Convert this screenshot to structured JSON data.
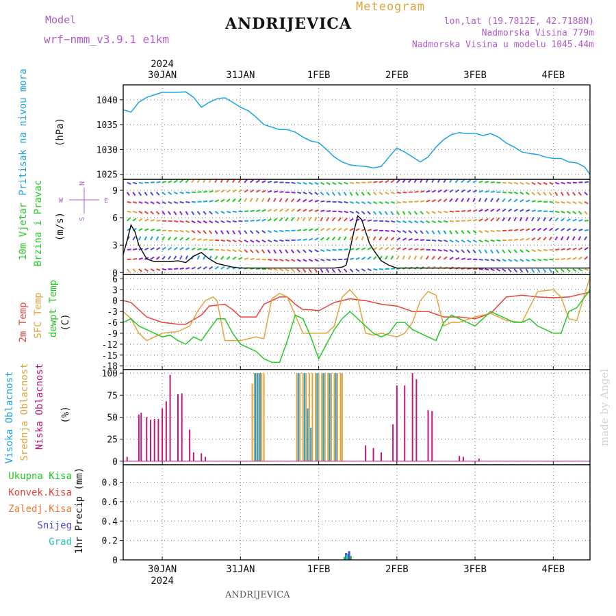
{
  "header": {
    "model_label": "Model",
    "model_name": "wrf−nmm_v3.9.1  e1km",
    "station": "ANDRIJEVICA",
    "title": "Meteogram",
    "coords": "lon,lat (19.7812E, 42.7188N)",
    "elev": "Nadmorska Visina 779m",
    "elev_model": "Nadmorska Visina u modelu 1045.44m",
    "watermark": "made by Angel",
    "footer_station": "ANDRIJEVICA"
  },
  "colors": {
    "pressure": "#1aa3e6",
    "temp_2m": "#e8413a",
    "temp_sfc": "#e3a33a",
    "dewpt": "#22c922",
    "cloud_high": "#1aa3e6",
    "cloud_mid": "#e3a33a",
    "cloud_low": "#c0187a",
    "precip_total": "#22c922",
    "precip_conv": "#e8413a",
    "precip_frozen": "#f07a30",
    "precip_snow": "#4a4ad8",
    "precip_hail": "#28c8b8",
    "wind_legend": "#b05ad0",
    "title_gold": "#e3a33a",
    "grey": "#5a5a5a"
  },
  "chart_data": {
    "type": "line",
    "x_axis": {
      "top_year": "2024",
      "bottom_year": "2024",
      "ticks": [
        "30JAN",
        "31JAN",
        "1FEB",
        "2FEB",
        "3FEB",
        "4FEB"
      ],
      "range_days": [
        -0.5,
        5.47
      ]
    },
    "panels": [
      {
        "id": "pressure",
        "ylabel_name": "Pritisak na nivou mora",
        "ylabel_unit": "(hPa)",
        "yticks": [
          1025,
          1030,
          1035,
          1040
        ],
        "ylim": [
          1024,
          1043
        ],
        "series": [
          {
            "name": "Pritisak na nivou mora",
            "x": [
              -0.5,
              -0.4,
              -0.3,
              -0.2,
              -0.1,
              0,
              0.1,
              0.2,
              0.3,
              0.4,
              0.5,
              0.6,
              0.7,
              0.8,
              0.9,
              1.0,
              1.1,
              1.2,
              1.3,
              1.4,
              1.5,
              1.6,
              1.7,
              1.8,
              1.9,
              2.0,
              2.1,
              2.2,
              2.3,
              2.4,
              2.5,
              2.6,
              2.7,
              2.8,
              2.9,
              3.0,
              3.1,
              3.2,
              3.3,
              3.4,
              3.5,
              3.6,
              3.7,
              3.8,
              3.9,
              4.0,
              4.1,
              4.2,
              4.3,
              4.4,
              4.5,
              4.6,
              4.7,
              4.8,
              4.9,
              5.0,
              5.1,
              5.2,
              5.3,
              5.4,
              5.47
            ],
            "values": [
              1038,
              1037.5,
              1039.5,
              1040.5,
              1041,
              1041.5,
              1041.5,
              1041.5,
              1041.6,
              1040.5,
              1038.5,
              1039.5,
              1040.2,
              1040.4,
              1039.5,
              1038.5,
              1037.8,
              1036.5,
              1035,
              1034.5,
              1034,
              1034,
              1033.5,
              1032.5,
              1031.7,
              1031.4,
              1030,
              1028.5,
              1027.5,
              1026.9,
              1026.7,
              1026.6,
              1026.3,
              1026.6,
              1028.5,
              1030.3,
              1029.5,
              1028.5,
              1027.5,
              1028.5,
              1030.5,
              1032,
              1033,
              1033.4,
              1033.2,
              1033.3,
              1032.8,
              1033.2,
              1032.5,
              1031.3,
              1030.5,
              1029.5,
              1029.2,
              1029,
              1028.5,
              1028.2,
              1028.2,
              1027.5,
              1027.3,
              1026.5,
              1025
            ]
          }
        ]
      },
      {
        "id": "wind",
        "ylabel_name": "10m Vjetar Brzina i Pravac",
        "ylabel_unit": "(m/s)",
        "compass": {
          "n": "N",
          "s": "S",
          "e": "E",
          "w": "W"
        },
        "yticks": [
          0,
          3,
          6,
          9
        ],
        "ylim": [
          -0.2,
          10.2
        ],
        "series": [
          {
            "name": "10m Vjetar Brzina",
            "x": [
              -0.5,
              -0.45,
              -0.4,
              -0.35,
              -0.3,
              -0.2,
              -0.1,
              0,
              0.1,
              0.2,
              0.3,
              0.4,
              0.5,
              0.6,
              0.7,
              0.8,
              0.9,
              1.0,
              1.2,
              1.4,
              1.6,
              1.8,
              2.0,
              2.2,
              2.3,
              2.35,
              2.4,
              2.45,
              2.5,
              2.55,
              2.6,
              2.65,
              2.7,
              2.8,
              2.9,
              3.0,
              3.2,
              3.4,
              3.6,
              3.8,
              4.0,
              4.2,
              4.4,
              4.6,
              4.8,
              5.0,
              5.2,
              5.4,
              5.47
            ],
            "values": [
              2,
              3.5,
              5.2,
              4.5,
              3,
              1.5,
              1.2,
              1.2,
              1.2,
              1.3,
              1.1,
              1.8,
              2.2,
              1.5,
              1,
              0.8,
              0.6,
              0.5,
              0.5,
              0.5,
              0.5,
              0.5,
              0.5,
              0.5,
              0.6,
              0.8,
              2.5,
              4.5,
              6.2,
              5.8,
              4.5,
              3.2,
              2.5,
              1.3,
              0.8,
              0.5,
              0.5,
              0.5,
              0.5,
              0.5,
              0.5,
              0.5,
              0.5,
              0.5,
              0.5,
              0.5,
              0.5,
              0.5,
              0.5
            ]
          }
        ]
      },
      {
        "id": "temperature",
        "ylabel_lines": [
          "2m Temp",
          "SFC Temp",
          "dewpt Temp"
        ],
        "ylabel_unit": "(C)",
        "yticks": [
          -18,
          -15,
          -12,
          -9,
          -6,
          -3,
          0,
          3,
          6
        ],
        "ylim": [
          -19,
          7.2
        ],
        "series": [
          {
            "name": "2m Temp",
            "x": [
              -0.5,
              -0.4,
              -0.2,
              0,
              0.2,
              0.3,
              0.5,
              0.6,
              0.8,
              0.9,
              1.0,
              1.1,
              1.2,
              1.3,
              1.4,
              1.5,
              1.6,
              1.7,
              1.8,
              1.9,
              2.0,
              2.2,
              2.4,
              2.6,
              2.8,
              3.0,
              3.2,
              3.4,
              3.6,
              3.8,
              4.0,
              4.2,
              4.4,
              4.6,
              4.8,
              5.0,
              5.2,
              5.3,
              5.4,
              5.47
            ],
            "values": [
              0,
              -0.5,
              -4.5,
              -6,
              -6.5,
              -6.5,
              -4,
              -1.5,
              -1,
              -2.5,
              -4.5,
              -4.5,
              -4.5,
              -1,
              0,
              1,
              1,
              -1,
              -2.5,
              -2.5,
              -2.8,
              -0.5,
              0.5,
              0,
              -1,
              -1.5,
              -3,
              -3,
              -4.5,
              -4.5,
              -5,
              -3.5,
              1,
              1.5,
              1,
              0.8,
              1,
              1.5,
              2,
              2.3
            ]
          },
          {
            "name": "SFC Temp",
            "x": [
              -0.5,
              -0.4,
              -0.3,
              -0.2,
              -0.1,
              0,
              0.2,
              0.35,
              0.45,
              0.55,
              0.65,
              0.7,
              0.8,
              0.9,
              1.0,
              1.1,
              1.2,
              1.3,
              1.4,
              1.5,
              1.6,
              1.8,
              2.0,
              2.1,
              2.2,
              2.3,
              2.4,
              2.5,
              2.6,
              2.7,
              2.8,
              2.9,
              3.0,
              3.1,
              3.2,
              3.3,
              3.4,
              3.5,
              3.6,
              3.7,
              3.8,
              4.0,
              4.2,
              4.4,
              4.6,
              4.8,
              5.0,
              5.1,
              5.2,
              5.3,
              5.47
            ],
            "values": [
              -3,
              -5,
              -9,
              -11,
              -10,
              -9,
              -8.5,
              -7,
              -3,
              0,
              1,
              0,
              -11,
              -11,
              -11,
              -10.5,
              -10,
              -10.5,
              0.5,
              2,
              1,
              -9,
              -9,
              -9,
              -7,
              1,
              3,
              0.5,
              -9,
              -9.5,
              -9,
              -9.5,
              -10,
              -9,
              -6,
              0,
              2.5,
              1.5,
              -7,
              -6,
              -6,
              -4.5,
              -3.5,
              -5.5,
              -6,
              2.5,
              3,
              1,
              -5,
              -5.5,
              6.5
            ]
          },
          {
            "name": "dewpt Temp",
            "x": [
              -0.5,
              -0.4,
              -0.3,
              -0.2,
              -0.1,
              0,
              0.1,
              0.2,
              0.3,
              0.4,
              0.5,
              0.6,
              0.7,
              0.8,
              0.9,
              1.0,
              1.1,
              1.2,
              1.3,
              1.4,
              1.5,
              1.6,
              1.7,
              1.8,
              1.9,
              2.0,
              2.1,
              2.2,
              2.3,
              2.4,
              2.5,
              2.6,
              2.7,
              2.8,
              2.9,
              3.0,
              3.1,
              3.2,
              3.3,
              3.4,
              3.5,
              3.6,
              3.7,
              3.8,
              3.9,
              4.0,
              4.1,
              4.2,
              4.3,
              4.4,
              4.5,
              4.6,
              4.7,
              4.8,
              4.9,
              5.0,
              5.1,
              5.2,
              5.3,
              5.47
            ],
            "values": [
              -6,
              -5,
              -7,
              -8,
              -9,
              -10,
              -9.5,
              -11,
              -12,
              -10,
              -11,
              -8,
              -5,
              -5,
              -9,
              -12,
              -13,
              -14,
              -16,
              -17,
              -17,
              -11,
              -4,
              -5,
              -10,
              -16,
              -12,
              -8,
              -5,
              -3,
              -5,
              -7,
              -9,
              -10,
              -9,
              -6,
              -6,
              -8,
              -9,
              -10,
              -11,
              -6,
              -4,
              -5,
              -6,
              -7,
              -5,
              -3,
              -4,
              -5,
              -6,
              -6,
              -5,
              -7,
              -8,
              -9,
              -9,
              -3,
              -2,
              3
            ]
          }
        ]
      },
      {
        "id": "clouds",
        "ylabel_lines": [
          "Visoka Oblacnost",
          "Srednja Oblacnost",
          "Niska Oblacnost"
        ],
        "ylabel_unit": "(%)",
        "yticks": [
          0,
          25,
          50,
          75,
          100
        ],
        "ylim": [
          -4,
          104
        ],
        "series": [
          {
            "name": "Niska Oblacnost",
            "x": [
              -0.45,
              -0.3,
              -0.27,
              -0.2,
              -0.15,
              -0.1,
              -0.05,
              0.0,
              0.05,
              0.1,
              0.2,
              0.25,
              0.35,
              0.4,
              0.5,
              0.55,
              2.6,
              2.7,
              2.8,
              2.95,
              3.0,
              3.1,
              3.2,
              3.25,
              3.4,
              3.45,
              3.8,
              3.85,
              4.05
            ],
            "values": [
              5,
              53,
              55,
              50,
              47,
              48,
              48,
              60,
              68,
              98,
              76,
              77,
              36,
              10,
              9,
              5,
              18,
              15,
              10,
              42,
              86,
              86,
              100,
              93,
              58,
              57,
              6,
              5,
              3
            ]
          },
          {
            "name": "Srednja Oblacnost",
            "x": [
              1.15,
              1.18,
              1.21,
              1.24,
              1.27,
              1.3,
              1.72,
              1.76,
              1.8,
              1.84,
              1.88,
              1.92,
              1.96,
              2.0,
              2.04,
              2.08,
              2.12,
              2.16,
              2.2,
              2.24,
              2.28,
              2.3
            ],
            "values": [
              88,
              100,
              100,
              100,
              100,
              100,
              100,
              100,
              100,
              100,
              100,
              100,
              100,
              100,
              100,
              100,
              100,
              100,
              100,
              100,
              100,
              100
            ]
          },
          {
            "name": "Visoka Oblacnost",
            "x": [
              1.19,
              1.22,
              1.25,
              1.74,
              1.82,
              1.86,
              1.9,
              1.98,
              2.06,
              2.14,
              2.22
            ],
            "values": [
              100,
              100,
              100,
              100,
              100,
              60,
              38,
              100,
              100,
              100,
              100
            ]
          }
        ]
      },
      {
        "id": "precip",
        "ylabel_name": "1hr Precip (mm)",
        "legend": [
          "Ukupna  Kisa",
          "Konvek.Kisa",
          "Zaledj.Kisa",
          "Snijeg",
          "Grad"
        ],
        "yticks": [
          0,
          0.2,
          0.4,
          0.6,
          0.8
        ],
        "ytick_labels": [
          "0",
          "0.2",
          "0.4",
          "0.6",
          "0.8"
        ],
        "ylim": [
          0,
          0.98
        ],
        "series": [
          {
            "name": "Ukupna Kisa",
            "x": [
              2.33,
              2.37,
              2.41
            ],
            "values": [
              0.03,
              0.06,
              0.04
            ]
          },
          {
            "name": "Snijeg",
            "x": [
              2.35,
              2.39
            ],
            "values": [
              0.07,
              0.09
            ]
          },
          {
            "name": "Grad",
            "x": [
              2.36
            ],
            "values": [
              0.05
            ]
          }
        ]
      }
    ]
  }
}
